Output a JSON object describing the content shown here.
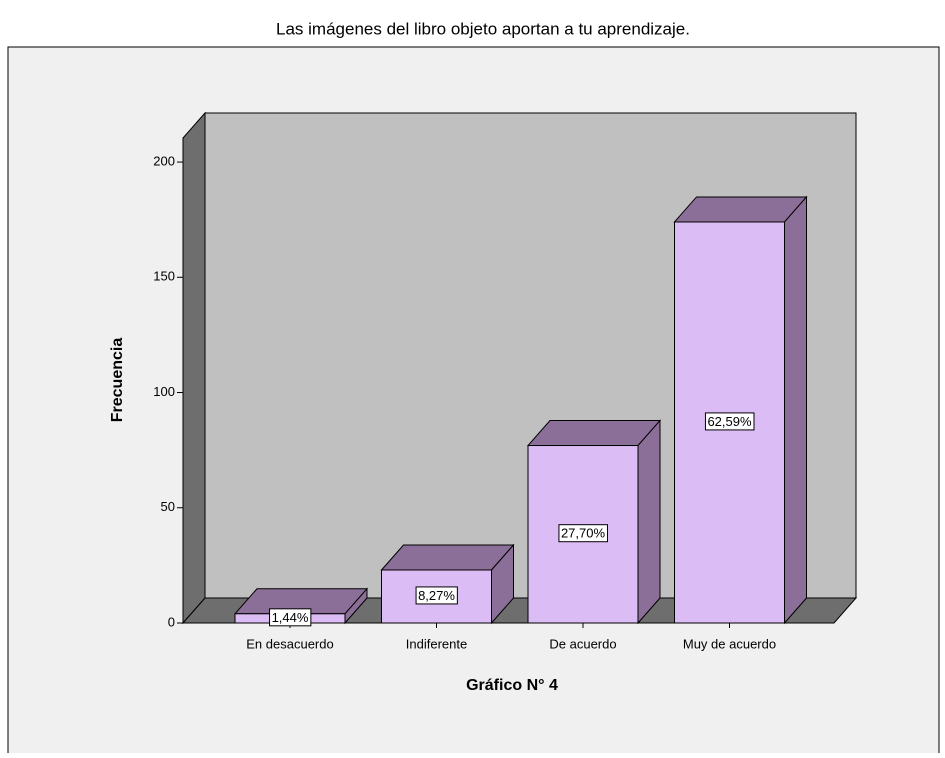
{
  "chart_data": {
    "type": "bar3d",
    "title": "Las imágenes del libro objeto aportan a tu aprendizaje.",
    "y_label": "Frecuencia",
    "x_label": "Gráfico N° 4",
    "categories": [
      "En desacuerdo",
      "Indiferente",
      "De acuerdo",
      "Muy de acuerdo"
    ],
    "values": [
      4,
      23,
      77,
      174
    ],
    "value_labels": [
      "1,44%",
      "8,27%",
      "27,70%",
      "62,59%"
    ],
    "color": "#dcbcf4",
    "ylim": [
      0,
      210
    ],
    "yticks": [
      0,
      50,
      100,
      150,
      200
    ]
  }
}
